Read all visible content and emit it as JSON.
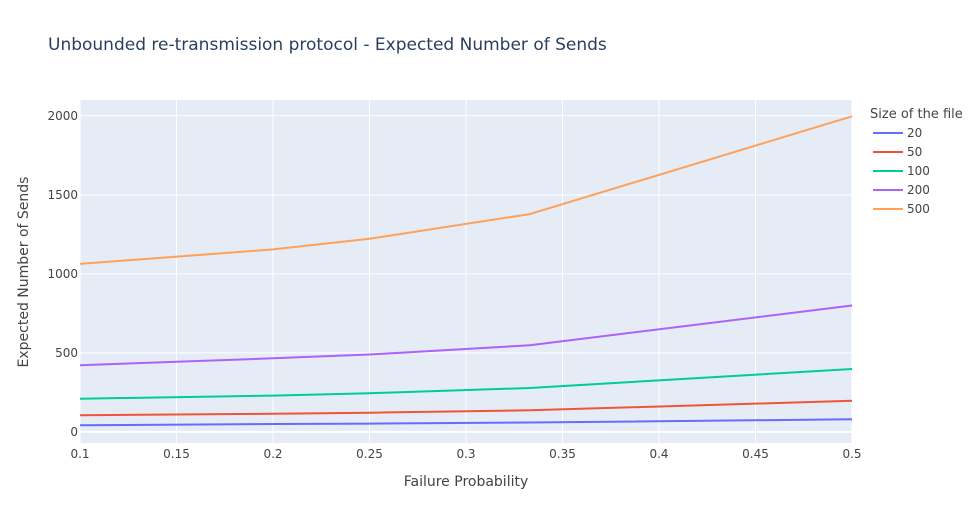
{
  "chart_data": {
    "type": "line",
    "title": "Unbounded re-transmission protocol - Expected Number of Sends",
    "xlabel": "Failure Probability",
    "ylabel": "Expected Number of Sends",
    "xlim": [
      0.1,
      0.5
    ],
    "ylim": [
      -70,
      2100
    ],
    "x_ticks": [
      0.1,
      0.15,
      0.2,
      0.25,
      0.3,
      0.35,
      0.4,
      0.45,
      0.5
    ],
    "x_tick_labels": [
      "0.1",
      "0.15",
      "0.2",
      "0.25",
      "0.3",
      "0.35",
      "0.4",
      "0.45",
      "0.5"
    ],
    "y_ticks": [
      0,
      500,
      1000,
      1500,
      2000
    ],
    "y_tick_labels": [
      "0",
      "500",
      "1000",
      "1500",
      "2000"
    ],
    "grid": true,
    "legend_title": "Size of the file",
    "legend_position": "right",
    "x": [
      0.1,
      0.2,
      0.25,
      0.333,
      0.5
    ],
    "series": [
      {
        "name": "20",
        "color": "#636efa",
        "values": [
          42,
          50,
          53,
          60,
          80
        ]
      },
      {
        "name": "50",
        "color": "#ef553b",
        "values": [
          106,
          115,
          122,
          137,
          197
        ]
      },
      {
        "name": "100",
        "color": "#00cc96",
        "values": [
          210,
          230,
          245,
          278,
          398
        ]
      },
      {
        "name": "200",
        "color": "#ab63fa",
        "values": [
          422,
          466,
          490,
          548,
          800
        ]
      },
      {
        "name": "500",
        "color": "#ffa15a",
        "values": [
          1063,
          1155,
          1222,
          1378,
          1997
        ]
      }
    ]
  }
}
